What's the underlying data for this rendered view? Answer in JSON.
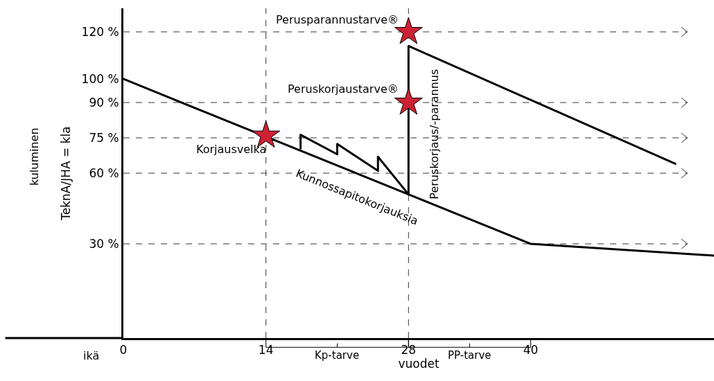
{
  "chart_data": {
    "type": "line",
    "xlabel": "vuodet",
    "ylabel": "TeknA/JHA = kla",
    "xlim": [
      0,
      58
    ],
    "xticks": [
      0,
      14,
      28,
      40
    ],
    "ylim": [
      -10,
      130
    ],
    "yticks": [
      {
        "value": 30,
        "label": "30 %"
      },
      {
        "value": 60,
        "label": "60 %"
      },
      {
        "value": 75,
        "label": "75 %"
      },
      {
        "value": 90,
        "label": "90 %"
      },
      {
        "value": 100,
        "label": "100 %"
      },
      {
        "value": 120,
        "label": "120 %"
      }
    ],
    "grid": false,
    "line_style": "solid",
    "marker": "none",
    "series": [
      {
        "color": "#000000",
        "x": [
          0,
          40,
          58
        ],
        "values": [
          100,
          30,
          25
        ]
      },
      {
        "color": "#000000",
        "x": [
          17.4,
          17.4,
          21,
          21,
          25,
          25,
          28,
          28,
          54.2
        ],
        "values": [
          70.5,
          76.3,
          68,
          72.4,
          61,
          67,
          51,
          114,
          64
        ]
      },
      {
        "type": "scatter",
        "marker": "star",
        "color": "#cc2233",
        "x": [
          14,
          28,
          28
        ],
        "values": [
          76,
          90,
          120
        ]
      }
    ],
    "ref_lines": [
      {
        "axis": "y",
        "value": 120,
        "line_style": "dashed",
        "color": "#333333"
      },
      {
        "axis": "y",
        "value": 90,
        "line_style": "dashed",
        "color": "#333333"
      },
      {
        "axis": "y",
        "value": 75,
        "line_style": "dashed",
        "color": "#333333"
      },
      {
        "axis": "y",
        "value": 60,
        "line_style": "dashed",
        "color": "#333333"
      },
      {
        "axis": "y",
        "value": 30,
        "line_style": "dashed",
        "color": "#333333"
      },
      {
        "axis": "x",
        "value": 14,
        "line_style": "dashed",
        "color": "#333333"
      },
      {
        "axis": "x",
        "value": 28,
        "line_style": "dashed",
        "color": "#333333"
      }
    ],
    "annotations": [
      {
        "text": "Korjausvelka",
        "x": 14,
        "y": 76
      },
      {
        "text": "Peruskorjaustarve®",
        "x": 28,
        "y": 90
      },
      {
        "text": "Perusparannustarve®",
        "x": 28,
        "y": 120
      },
      {
        "text": "Kunnossapitokorjauksia",
        "x": 25,
        "y": 57
      },
      "Peruskorjaus/-parannus",
      "kuluminen",
      "ikä",
      "Kp-tarve",
      "PP-tarve"
    ]
  }
}
